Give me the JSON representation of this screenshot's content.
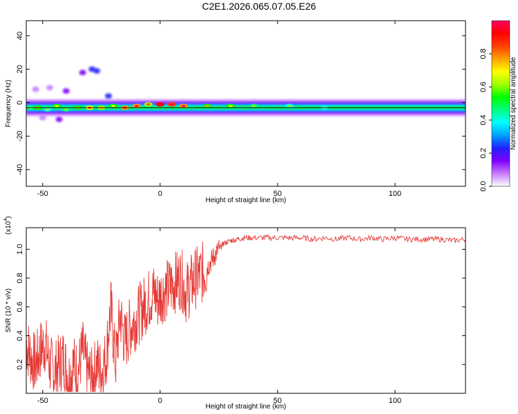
{
  "title": "C2E1.2026.065.07.05.E26",
  "chart_data": [
    {
      "type": "heatmap",
      "xlabel": "Height of straight line (km)",
      "ylabel": "Frequency (Hz)",
      "xlim": [
        -57,
        130
      ],
      "ylim": [
        -50,
        49
      ],
      "x_ticks": [
        -50,
        0,
        50,
        100
      ],
      "y_ticks": [
        -40,
        -20,
        0,
        20,
        40
      ],
      "colorbar": {
        "label": "Normalized spectral amplitude",
        "range": [
          0,
          1
        ],
        "ticks": [
          0.0,
          0.2,
          0.4,
          0.6,
          0.8
        ],
        "tick_labels": [
          "0.0",
          "0.2",
          "0.4",
          "0.6",
          "0.8"
        ],
        "colors": [
          "#ffffff",
          "#c77dff",
          "#8000ff",
          "#2020ff",
          "#00a0ff",
          "#00ffff",
          "#00ff80",
          "#00ff00",
          "#a0ff00",
          "#ffff00",
          "#ffa000",
          "#ff4000",
          "#ff0000",
          "#ff0060"
        ]
      },
      "ridge": {
        "frequency_hz": -3,
        "from_km": -57,
        "to_km": 130
      },
      "hot_spots": [
        {
          "x": -55,
          "y": -3,
          "v": 0.45
        },
        {
          "x": -52,
          "y": -3,
          "v": 0.55
        },
        {
          "x": -48,
          "y": -4,
          "v": 0.4
        },
        {
          "x": -44,
          "y": -2,
          "v": 0.5
        },
        {
          "x": -40,
          "y": -4,
          "v": 0.45
        },
        {
          "x": -35,
          "y": -3,
          "v": 0.55
        },
        {
          "x": -30,
          "y": -3,
          "v": 0.7
        },
        {
          "x": -25,
          "y": -3,
          "v": 0.6
        },
        {
          "x": -20,
          "y": -2,
          "v": 0.5
        },
        {
          "x": -15,
          "y": -3,
          "v": 0.75
        },
        {
          "x": -10,
          "y": -2,
          "v": 0.8
        },
        {
          "x": -5,
          "y": -1,
          "v": 0.65
        },
        {
          "x": 0,
          "y": -1,
          "v": 0.9
        },
        {
          "x": 5,
          "y": -1,
          "v": 0.85
        },
        {
          "x": 10,
          "y": -2,
          "v": 0.8
        },
        {
          "x": 20,
          "y": -2,
          "v": 0.55
        },
        {
          "x": 30,
          "y": -2,
          "v": 0.5
        },
        {
          "x": 40,
          "y": -2,
          "v": 0.45
        },
        {
          "x": 55,
          "y": -2,
          "v": 0.4
        },
        {
          "x": 70,
          "y": -3,
          "v": 0.4
        }
      ],
      "scatter_blobs": [
        {
          "x": -29,
          "y": 20,
          "v": 0.25
        },
        {
          "x": -27,
          "y": 19,
          "v": 0.2
        },
        {
          "x": -33,
          "y": 18,
          "v": 0.12
        },
        {
          "x": -53,
          "y": 8,
          "v": 0.1
        },
        {
          "x": -47,
          "y": 9,
          "v": 0.1
        },
        {
          "x": -40,
          "y": 7,
          "v": 0.12
        },
        {
          "x": -22,
          "y": 4,
          "v": 0.2
        },
        {
          "x": -43,
          "y": -10,
          "v": 0.12
        },
        {
          "x": -50,
          "y": -9,
          "v": 0.1
        }
      ]
    },
    {
      "type": "line",
      "xlabel": "Height of straight line (km)",
      "ylabel": "SNR (10 * v/v)",
      "multiplier_label": "(x10",
      "multiplier_exp": "4",
      "xlim": [
        -57,
        130
      ],
      "ylim": [
        0.0,
        1.15
      ],
      "x_ticks": [
        -50,
        0,
        50,
        100
      ],
      "y_ticks": [
        0.2,
        0.4,
        0.6,
        0.8,
        1.0
      ],
      "y_tick_labels": [
        "0.2",
        "0.4",
        "0.6",
        "0.8",
        "1.0"
      ],
      "series": [
        {
          "color": "#e53935",
          "x": [
            -57,
            -55,
            -53,
            -51,
            -49,
            -47,
            -45,
            -43,
            -41,
            -39,
            -37,
            -35,
            -33,
            -31,
            -29,
            -27,
            -25,
            -23,
            -21,
            -19,
            -17,
            -15,
            -13,
            -11,
            -9,
            -7,
            -5,
            -3,
            -1,
            1,
            3,
            5,
            7,
            9,
            11,
            13,
            15,
            17,
            19,
            21,
            23,
            25,
            27,
            30,
            33,
            36,
            40,
            45,
            50,
            55,
            60,
            65,
            70,
            75,
            80,
            85,
            90,
            95,
            100,
            105,
            110,
            115,
            120,
            125,
            130
          ],
          "y": [
            0.35,
            0.25,
            0.2,
            0.3,
            0.35,
            0.2,
            0.15,
            0.2,
            0.25,
            0.1,
            0.2,
            0.15,
            0.3,
            0.15,
            0.1,
            0.2,
            0.15,
            0.25,
            0.6,
            0.2,
            0.55,
            0.35,
            0.45,
            0.5,
            0.55,
            0.6,
            0.65,
            0.7,
            0.65,
            0.7,
            0.72,
            0.75,
            0.78,
            0.8,
            0.7,
            0.75,
            0.8,
            0.82,
            0.85,
            0.9,
            0.95,
            1.0,
            1.04,
            1.06,
            1.07,
            1.08,
            1.08,
            1.08,
            1.08,
            1.08,
            1.08,
            1.07,
            1.08,
            1.07,
            1.08,
            1.07,
            1.08,
            1.07,
            1.08,
            1.07,
            1.07,
            1.07,
            1.07,
            1.06,
            1.07
          ]
        }
      ]
    }
  ]
}
